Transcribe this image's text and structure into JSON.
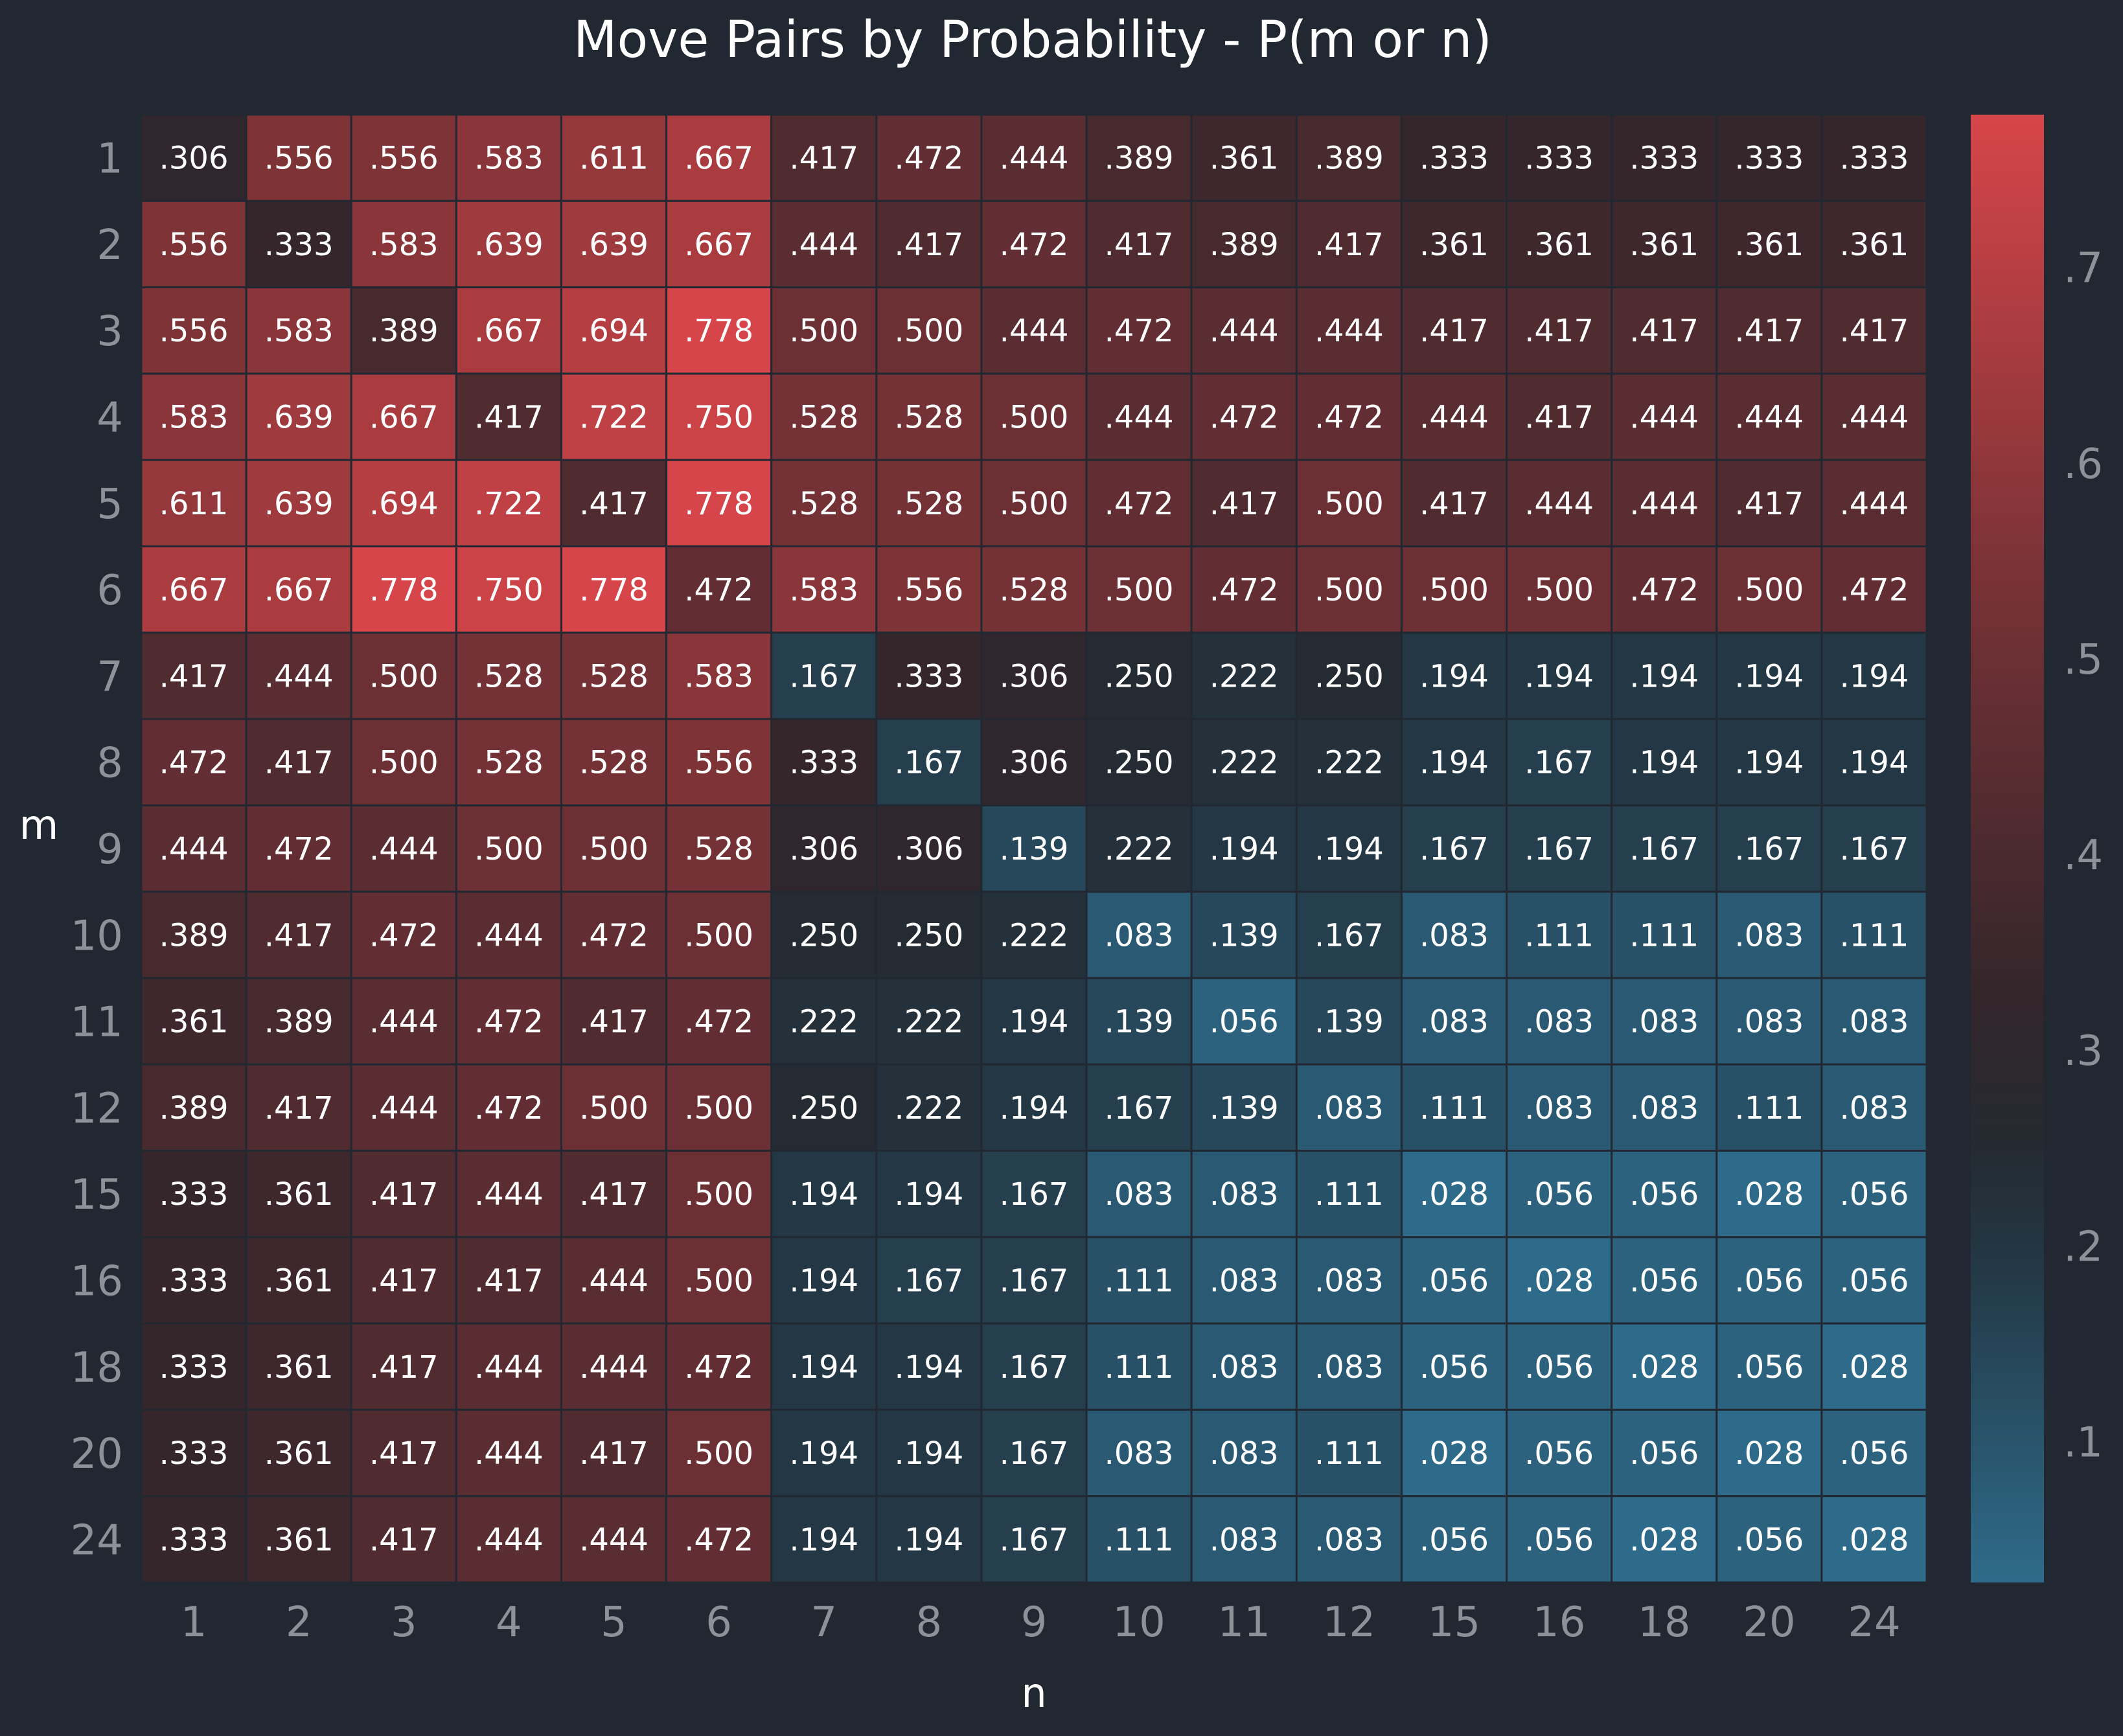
{
  "chart_data": {
    "type": "heatmap",
    "title": "Move Pairs by Probability - P(m or n)",
    "xlabel": "n",
    "ylabel": "m",
    "x_categories": [
      "1",
      "2",
      "3",
      "4",
      "5",
      "6",
      "7",
      "8",
      "9",
      "10",
      "11",
      "12",
      "15",
      "16",
      "18",
      "20",
      "24"
    ],
    "y_categories": [
      "1",
      "2",
      "3",
      "4",
      "5",
      "6",
      "7",
      "8",
      "9",
      "10",
      "11",
      "12",
      "15",
      "16",
      "18",
      "20",
      "24"
    ],
    "values": [
      [
        ".306",
        ".556",
        ".556",
        ".583",
        ".611",
        ".667",
        ".417",
        ".472",
        ".444",
        ".389",
        ".361",
        ".389",
        ".333",
        ".333",
        ".333",
        ".333",
        ".333"
      ],
      [
        ".556",
        ".333",
        ".583",
        ".639",
        ".639",
        ".667",
        ".444",
        ".417",
        ".472",
        ".417",
        ".389",
        ".417",
        ".361",
        ".361",
        ".361",
        ".361",
        ".361"
      ],
      [
        ".556",
        ".583",
        ".389",
        ".667",
        ".694",
        ".778",
        ".500",
        ".500",
        ".444",
        ".472",
        ".444",
        ".444",
        ".417",
        ".417",
        ".417",
        ".417",
        ".417"
      ],
      [
        ".583",
        ".639",
        ".667",
        ".417",
        ".722",
        ".750",
        ".528",
        ".528",
        ".500",
        ".444",
        ".472",
        ".472",
        ".444",
        ".417",
        ".444",
        ".444",
        ".444"
      ],
      [
        ".611",
        ".639",
        ".694",
        ".722",
        ".417",
        ".778",
        ".528",
        ".528",
        ".500",
        ".472",
        ".417",
        ".500",
        ".417",
        ".444",
        ".444",
        ".417",
        ".444"
      ],
      [
        ".667",
        ".667",
        ".778",
        ".750",
        ".778",
        ".472",
        ".583",
        ".556",
        ".528",
        ".500",
        ".472",
        ".500",
        ".500",
        ".500",
        ".472",
        ".500",
        ".472"
      ],
      [
        ".417",
        ".444",
        ".500",
        ".528",
        ".528",
        ".583",
        ".167",
        ".333",
        ".306",
        ".250",
        ".222",
        ".250",
        ".194",
        ".194",
        ".194",
        ".194",
        ".194"
      ],
      [
        ".472",
        ".417",
        ".500",
        ".528",
        ".528",
        ".556",
        ".333",
        ".167",
        ".306",
        ".250",
        ".222",
        ".222",
        ".194",
        ".167",
        ".194",
        ".194",
        ".194"
      ],
      [
        ".444",
        ".472",
        ".444",
        ".500",
        ".500",
        ".528",
        ".306",
        ".306",
        ".139",
        ".222",
        ".194",
        ".194",
        ".167",
        ".167",
        ".167",
        ".167",
        ".167"
      ],
      [
        ".389",
        ".417",
        ".472",
        ".444",
        ".472",
        ".500",
        ".250",
        ".250",
        ".222",
        ".083",
        ".139",
        ".167",
        ".083",
        ".111",
        ".111",
        ".083",
        ".111"
      ],
      [
        ".361",
        ".389",
        ".444",
        ".472",
        ".417",
        ".472",
        ".222",
        ".222",
        ".194",
        ".139",
        ".056",
        ".139",
        ".083",
        ".083",
        ".083",
        ".083",
        ".083"
      ],
      [
        ".389",
        ".417",
        ".444",
        ".472",
        ".500",
        ".500",
        ".250",
        ".222",
        ".194",
        ".167",
        ".139",
        ".083",
        ".111",
        ".083",
        ".083",
        ".111",
        ".083"
      ],
      [
        ".333",
        ".361",
        ".417",
        ".444",
        ".417",
        ".500",
        ".194",
        ".194",
        ".167",
        ".083",
        ".083",
        ".111",
        ".028",
        ".056",
        ".056",
        ".028",
        ".056"
      ],
      [
        ".333",
        ".361",
        ".417",
        ".417",
        ".444",
        ".500",
        ".194",
        ".167",
        ".167",
        ".111",
        ".083",
        ".083",
        ".056",
        ".028",
        ".056",
        ".056",
        ".056"
      ],
      [
        ".333",
        ".361",
        ".417",
        ".444",
        ".444",
        ".472",
        ".194",
        ".194",
        ".167",
        ".111",
        ".083",
        ".083",
        ".056",
        ".056",
        ".028",
        ".056",
        ".028"
      ],
      [
        ".333",
        ".361",
        ".417",
        ".444",
        ".417",
        ".500",
        ".194",
        ".194",
        ".167",
        ".083",
        ".083",
        ".111",
        ".028",
        ".056",
        ".056",
        ".028",
        ".056"
      ],
      [
        ".333",
        ".361",
        ".417",
        ".444",
        ".444",
        ".472",
        ".194",
        ".194",
        ".167",
        ".111",
        ".083",
        ".083",
        ".056",
        ".056",
        ".028",
        ".056",
        ".028"
      ]
    ],
    "colorbar": {
      "range": [
        0.028,
        0.778
      ],
      "ticks": [
        ".1",
        ".2",
        ".3",
        ".4",
        ".5",
        ".6",
        ".7"
      ],
      "low_color": "#2e6b8a",
      "mid_color": "#252a31",
      "high_color": "#d64549"
    },
    "background_color": "#222831",
    "grid": true
  }
}
